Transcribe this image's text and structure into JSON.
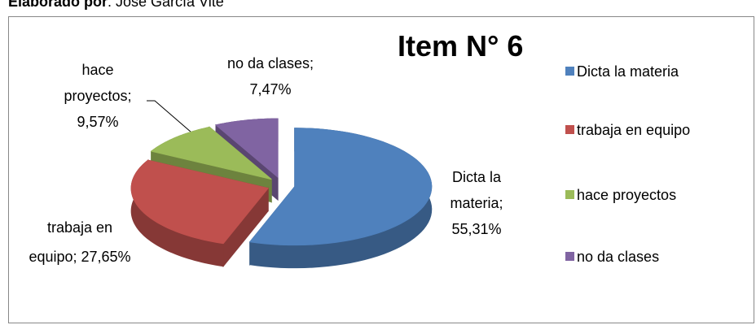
{
  "caption_label": "Elaborado por",
  "caption_text": ": José García Vite",
  "chart_data": {
    "type": "pie",
    "title": "Item N° 6",
    "categories": [
      "Dicta la materia",
      "trabaja en equipo",
      "hace proyectos",
      "no da clases"
    ],
    "values": [
      55.31,
      27.65,
      9.57,
      7.47
    ],
    "value_labels": [
      "Dicta la materia; 55,31%",
      "trabaja en equipo; 27,65%",
      "hace proyectos; 9,57%",
      "no da clases; 7,47%"
    ],
    "colors": [
      "#4f81bd",
      "#c0504d",
      "#9bbb59",
      "#8064a2"
    ],
    "legend": "right"
  }
}
